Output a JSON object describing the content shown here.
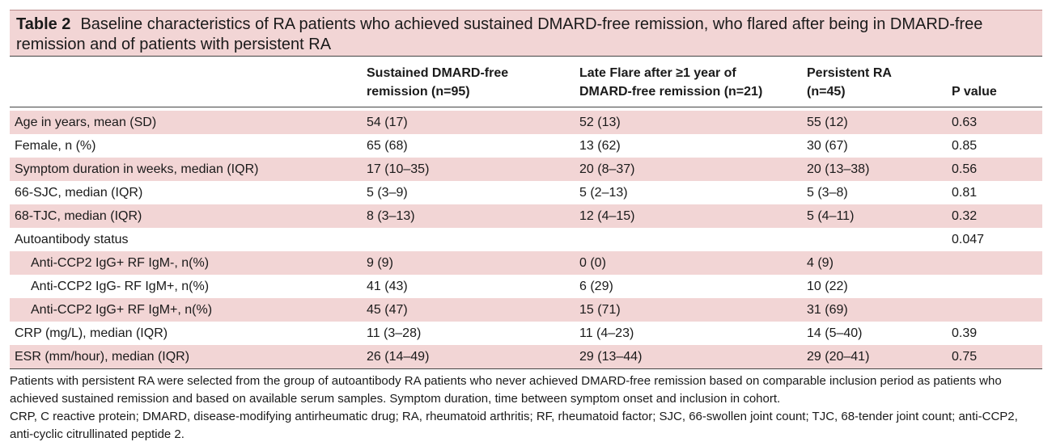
{
  "table": {
    "number": "Table 2",
    "title": "Baseline characteristics of RA patients who achieved sustained DMARD-free remission, who flared after being in DMARD-free remission and of patients with persistent RA",
    "columns": [
      {
        "line1": "",
        "line2": ""
      },
      {
        "line1": "Sustained DMARD-free",
        "line2": "remission (n=95)"
      },
      {
        "line1": "Late Flare after ≥1 year of",
        "line2": "DMARD-free remission (n=21)"
      },
      {
        "line1": "Persistent RA",
        "line2": "(n=45)"
      },
      {
        "line1": "",
        "line2": "P value"
      }
    ],
    "rows": [
      {
        "label": "Age in years, mean (SD)",
        "c1": "54 (17)",
        "c2": "52 (13)",
        "c3": "55 (12)",
        "p": "0.63",
        "shaded": true
      },
      {
        "label": "Female, n (%)",
        "c1": "65 (68)",
        "c2": "13 (62)",
        "c3": "30 (67)",
        "p": "0.85",
        "shaded": false
      },
      {
        "label": "Symptom duration in weeks, median (IQR)",
        "c1": "17 (10–35)",
        "c2": "20 (8–37)",
        "c3": "20 (13–38)",
        "p": "0.56",
        "shaded": true
      },
      {
        "label": "66-SJC, median (IQR)",
        "c1": " 5 (3–9)",
        "c2": " 5 (2–13)",
        "c3": " 5 (3–8)",
        "p": "0.81",
        "shaded": false
      },
      {
        "label": "68-TJC, median (IQR)",
        "c1": " 8 (3–13)",
        "c2": "12 (4–15)",
        "c3": " 5 (4–11)",
        "p": "0.32",
        "shaded": true
      },
      {
        "label": "Autoantibody status",
        "c1": "",
        "c2": "",
        "c3": "",
        "p": "0.047",
        "shaded": false
      },
      {
        "label": "Anti-CCP2 IgG+ RF IgM-, n(%)",
        "c1": " 9 (9)",
        "c2": "0 (0)",
        "c3": " 4 (9)",
        "p": "",
        "shaded": true
      },
      {
        "label": "Anti-CCP2 IgG- RF IgM+, n(%)",
        "c1": "41 (43)",
        "c2": "6 (29)",
        "c3": "10 (22)",
        "p": "",
        "shaded": false
      },
      {
        "label": "Anti-CCP2 IgG+ RF IgM+, n(%)",
        "c1": "45 (47)",
        "c2": "15 (71)",
        "c3": "31 (69)",
        "p": "",
        "shaded": true
      },
      {
        "label": "CRP (mg/L), median (IQR)",
        "c1": "11 (3–28)",
        "c2": "11 (4–23)",
        "c3": "14 (5–40)",
        "p": "0.39",
        "shaded": false
      },
      {
        "label": "ESR (mm/hour), median (IQR)",
        "c1": "26 (14–49)",
        "c2": "29 (13–44)",
        "c3": "29 (20–41)",
        "p": "0.75",
        "shaded": true
      }
    ],
    "footnote1": "Patients with persistent RA were selected from the group of autoantibody RA patients who never achieved DMARD-free remission based on comparable inclusion period as patients who achieved sustained remission and based on available serum samples. Symptom duration, time between symptom onset and inclusion in cohort.",
    "footnote2": "CRP, C reactive protein; DMARD, disease-modifying antirheumatic drug; RA, rheumatoid arthritis; RF, rheumatoid factor; SJC, 66-swollen joint count; TJC, 68-tender joint count; anti-CCP2, anti-cyclic citrullinated peptide 2."
  }
}
